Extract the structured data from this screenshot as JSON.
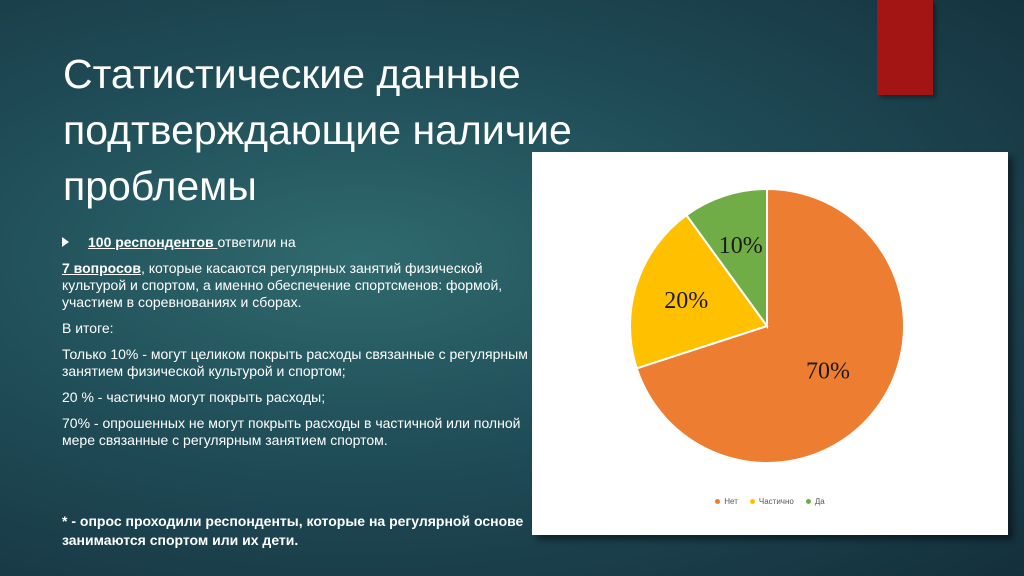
{
  "title": {
    "line1": "Статистические данные",
    "line2": "подтверждающие наличие",
    "line3": "проблемы"
  },
  "body": {
    "respondents_bold": "100 респондентов ",
    "respondents_rest": "ответили на",
    "questions_bold": "7 вопросов",
    "questions_rest": ", которые касаются регулярных занятий физической культурой и спортом, а именно обеспечение спортсменов: формой, участием в соревнованиях и сборах.",
    "summary": "В итоге:",
    "line_10": "Только 10% - могут целиком покрыть расходы связанные с регулярным занятием физической культурой и спортом;",
    "line_20": "20 % - частично могут покрыть расходы;",
    "line_70": "70% - опрошенных не могут покрыть расходы в частичной или полной мере связанные с регулярным занятием спортом."
  },
  "note": "* - опрос проходили респонденты, которые на регулярной основе занимаются спортом или их дети.",
  "colors": {
    "background": "#1f4c57",
    "accent": "#a31414"
  },
  "chart_data": {
    "type": "pie",
    "categories": [
      "Нет",
      "Частично",
      "Да"
    ],
    "values": [
      70,
      20,
      10
    ],
    "data_labels": [
      "70%",
      "20%",
      "10%"
    ],
    "colors": [
      "#ed7d31",
      "#ffc000",
      "#70ad47"
    ],
    "legend_position": "bottom"
  }
}
